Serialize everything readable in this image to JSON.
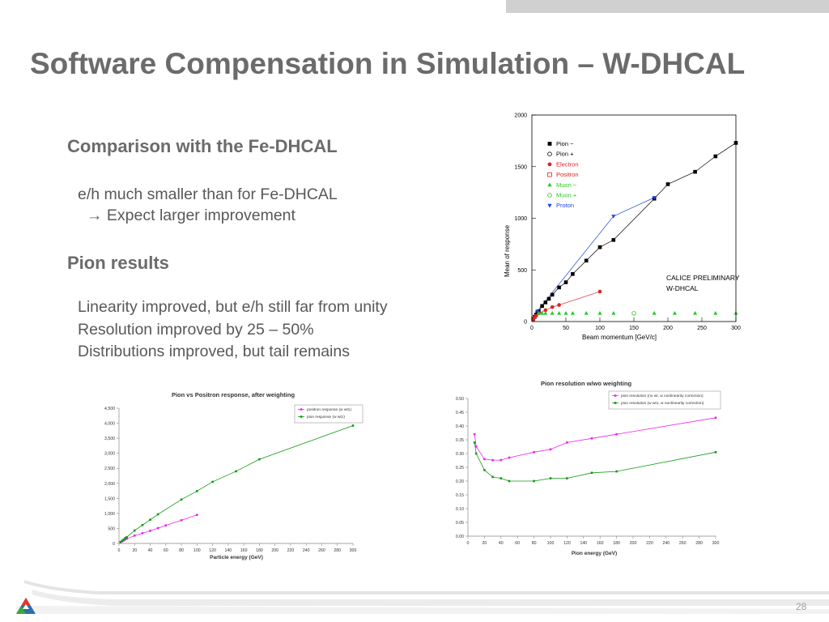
{
  "slide": {
    "title": "Software Compensation in Simulation – W-DHCAL",
    "section1": {
      "heading": "Comparison with the Fe-DHCAL",
      "lines": [
        "e/h much smaller than for Fe-DHCAL",
        "→ Expect larger improvement"
      ]
    },
    "section2": {
      "heading": "Pion results",
      "lines": [
        "Linearity improved, but e/h still far from unity",
        "Resolution improved by 25 – 50%",
        "Distributions improved, but tail remains"
      ]
    },
    "page_number": "28"
  },
  "chart_data": [
    {
      "type": "scatter",
      "title": "",
      "xlabel": "Beam momentum [GeV/c]",
      "ylabel": "Mean of response",
      "xlim": [
        0,
        300
      ],
      "ylim": [
        0,
        2000
      ],
      "xticks": [
        0,
        50,
        100,
        150,
        200,
        250,
        300
      ],
      "yticks": [
        0,
        500,
        1000,
        1500,
        2000
      ],
      "legend_position": "top-left",
      "annotation": [
        "CALICE PRELIMINARY",
        "W-DHCAL"
      ],
      "series": [
        {
          "name": "Pion −",
          "color": "#000000",
          "marker": "square",
          "x": [
            2,
            4,
            6,
            8,
            10,
            15,
            20,
            25,
            30,
            40,
            50,
            60,
            80,
            100,
            120,
            180,
            200,
            240,
            270,
            300
          ],
          "y": [
            25,
            45,
            65,
            85,
            100,
            150,
            185,
            220,
            260,
            330,
            380,
            460,
            590,
            720,
            790,
            1190,
            1330,
            1450,
            1600,
            1730
          ]
        },
        {
          "name": "Pion +",
          "color": "#000000",
          "marker": "circle-open",
          "x": [],
          "y": []
        },
        {
          "name": "Electron",
          "color": "#dd2222",
          "marker": "circle",
          "x": [
            2,
            4,
            6,
            10,
            20,
            30,
            40,
            100
          ],
          "y": [
            20,
            40,
            55,
            80,
            110,
            140,
            160,
            290
          ]
        },
        {
          "name": "Positron",
          "color": "#dd2222",
          "marker": "square-open",
          "x": [],
          "y": []
        },
        {
          "name": "Muon −",
          "color": "#22cc22",
          "marker": "triangle",
          "x": [
            10,
            15,
            20,
            30,
            40,
            50,
            60,
            80,
            100,
            120,
            180,
            210,
            240,
            270,
            300
          ],
          "y": [
            80,
            80,
            80,
            80,
            80,
            80,
            80,
            80,
            80,
            80,
            80,
            80,
            80,
            80,
            80
          ]
        },
        {
          "name": "Muon +",
          "color": "#22cc22",
          "marker": "circle-open",
          "x": [
            150
          ],
          "y": [
            80
          ]
        },
        {
          "name": "Proton",
          "color": "#2244dd",
          "marker": "triangle-down",
          "x": [
            8,
            120,
            180
          ],
          "y": [
            100,
            1020,
            1200
          ]
        }
      ]
    },
    {
      "type": "line",
      "title": "Pion vs Positron response, after weighting",
      "xlabel": "Particle energy (GeV)",
      "ylabel": "",
      "xlim": [
        0,
        300
      ],
      "ylim": [
        0,
        4500
      ],
      "xticks": [
        0,
        20,
        40,
        60,
        80,
        100,
        120,
        140,
        160,
        180,
        200,
        220,
        240,
        260,
        280,
        300
      ],
      "yticks": [
        0,
        500,
        1000,
        1500,
        2000,
        2500,
        3000,
        3500,
        4000,
        4500
      ],
      "ytick_labels": [
        "0",
        "500",
        "1,000",
        "1,500",
        "2,000",
        "2,500",
        "3,000",
        "3,500",
        "4,000",
        "4,500"
      ],
      "legend_position": "top-right",
      "series": [
        {
          "name": "positron response (w wt1)",
          "color": "#ee22ee",
          "x": [
            2,
            4,
            6,
            8,
            10,
            20,
            30,
            40,
            50,
            60,
            80,
            100
          ],
          "y": [
            40,
            70,
            100,
            130,
            160,
            260,
            340,
            420,
            510,
            600,
            770,
            950
          ]
        },
        {
          "name": "pion response (w wt1)",
          "color": "#119911",
          "x": [
            2,
            4,
            6,
            8,
            10,
            20,
            30,
            40,
            50,
            80,
            100,
            120,
            150,
            180,
            300
          ],
          "y": [
            50,
            90,
            130,
            180,
            210,
            430,
            610,
            790,
            970,
            1460,
            1740,
            2050,
            2400,
            2800,
            3920
          ]
        }
      ]
    },
    {
      "type": "line",
      "title": "Pion resolution w/wo weighting",
      "xlabel": "Pion energy (GeV)",
      "ylabel": "",
      "xlim": [
        0,
        300
      ],
      "ylim": [
        0,
        0.5
      ],
      "xticks": [
        0,
        20,
        40,
        60,
        80,
        100,
        120,
        140,
        160,
        180,
        200,
        220,
        240,
        260,
        280,
        300
      ],
      "yticks": [
        0,
        0.05,
        0.1,
        0.15,
        0.2,
        0.25,
        0.3,
        0.35,
        0.4,
        0.45,
        0.5
      ],
      "ytick_labels": [
        "0.00",
        "0.05",
        "0.10",
        "0.15",
        "0.20",
        "0.25",
        "0.30",
        "0.35",
        "0.40",
        "0.45",
        "0.50"
      ],
      "legend_position": "top-right",
      "series": [
        {
          "name": "pion resolution (no wt, w nonlinearity correction)",
          "color": "#ee22ee",
          "x": [
            8,
            10,
            20,
            30,
            40,
            50,
            80,
            100,
            120,
            150,
            180,
            300
          ],
          "y": [
            0.37,
            0.325,
            0.28,
            0.276,
            0.276,
            0.285,
            0.305,
            0.315,
            0.34,
            0.355,
            0.37,
            0.43
          ]
        },
        {
          "name": "pion resolution (w wt1, w nonlinearity correction)",
          "color": "#119911",
          "x": [
            8,
            10,
            20,
            30,
            40,
            50,
            80,
            100,
            120,
            150,
            180,
            300
          ],
          "y": [
            0.34,
            0.3,
            0.24,
            0.215,
            0.21,
            0.2,
            0.2,
            0.21,
            0.21,
            0.23,
            0.235,
            0.305
          ]
        }
      ]
    }
  ]
}
